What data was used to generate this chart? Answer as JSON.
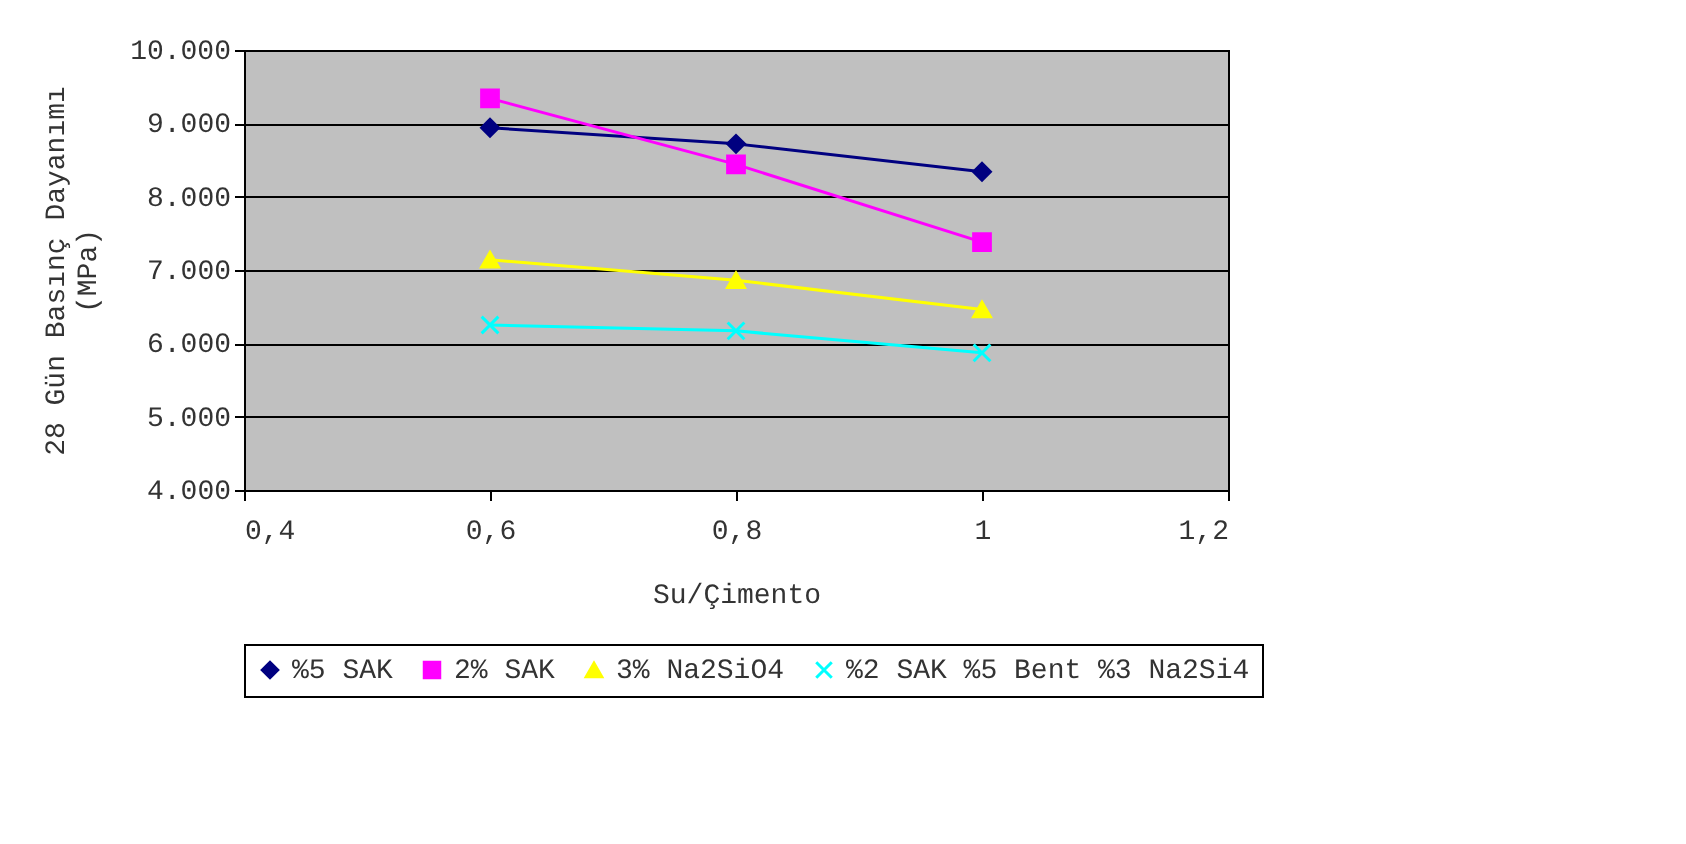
{
  "chart_data": {
    "type": "line",
    "xlabel": "Su/Çimento",
    "ylabel": "28 Gün Basınç Dayanımı\n(MPa)",
    "x": [
      0.6,
      0.8,
      1
    ],
    "series": [
      {
        "name": "%5 SAK",
        "color": "#000080",
        "marker": "diamond",
        "values": [
          8940,
          8720,
          8340
        ]
      },
      {
        "name": "2% SAK",
        "color": "#ff00ff",
        "marker": "square",
        "values": [
          9340,
          8440,
          7380
        ]
      },
      {
        "name": "3% Na2SiO4",
        "color": "#ffff00",
        "marker": "triangle",
        "values": [
          7140,
          6860,
          6460
        ]
      },
      {
        "name": "%2 SAK %5 Bent %3 Na2Si4",
        "color": "#00ffff",
        "marker": "cross",
        "values": [
          6250,
          6170,
          5870
        ]
      }
    ],
    "xlim": [
      0.4,
      1.2
    ],
    "xticks": [
      {
        "value": 0.4,
        "label": "0,4"
      },
      {
        "value": 0.6,
        "label": "0,6"
      },
      {
        "value": 0.8,
        "label": "0,8"
      },
      {
        "value": 1,
        "label": "1"
      },
      {
        "value": 1.2,
        "label": "1,2"
      }
    ],
    "ylim": [
      4000,
      10000
    ],
    "yticks": [
      {
        "value": 4000,
        "label": "4.000"
      },
      {
        "value": 5000,
        "label": "5.000"
      },
      {
        "value": 6000,
        "label": "6.000"
      },
      {
        "value": 7000,
        "label": "7.000"
      },
      {
        "value": 8000,
        "label": "8.000"
      },
      {
        "value": 9000,
        "label": "9.000"
      },
      {
        "value": 10000,
        "label": "10.000"
      }
    ],
    "grid": "y",
    "legend": "bottom",
    "line_style": "solid"
  }
}
